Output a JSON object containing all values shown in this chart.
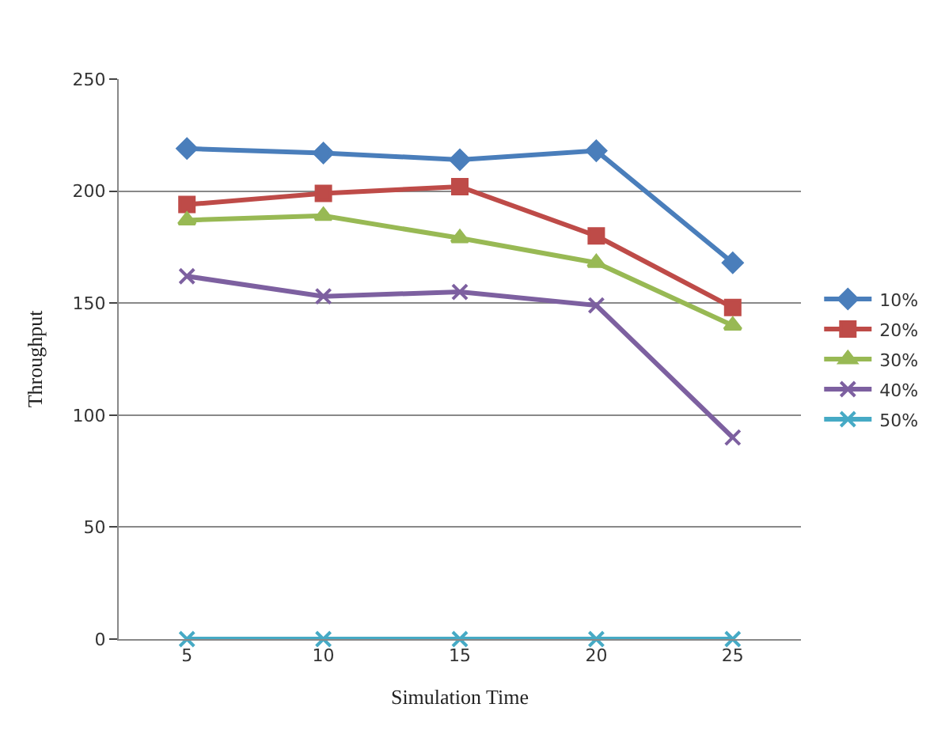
{
  "chart_data": {
    "type": "line",
    "xlabel": "Simulation Time",
    "ylabel": "Throughput",
    "categories": [
      "5",
      "10",
      "15",
      "20",
      "25"
    ],
    "ylim": [
      0,
      250
    ],
    "yticks": [
      0,
      50,
      100,
      150,
      200,
      250
    ],
    "grid": "y",
    "legend": "right",
    "series": [
      {
        "name": "10%",
        "color": "#4a7ebb",
        "marker": "diamond",
        "values": [
          219,
          217,
          214,
          218,
          168
        ]
      },
      {
        "name": "20%",
        "color": "#be4b48",
        "marker": "square",
        "values": [
          194,
          199,
          202,
          180,
          148
        ]
      },
      {
        "name": "30%",
        "color": "#98b954",
        "marker": "triangle",
        "values": [
          187,
          189,
          179,
          168,
          140
        ]
      },
      {
        "name": "40%",
        "color": "#7d60a0",
        "marker": "cross",
        "values": [
          162,
          153,
          155,
          149,
          90
        ]
      },
      {
        "name": "50%",
        "color": "#46aac5",
        "marker": "cross",
        "values": [
          0,
          0,
          0,
          0,
          0
        ]
      }
    ]
  }
}
